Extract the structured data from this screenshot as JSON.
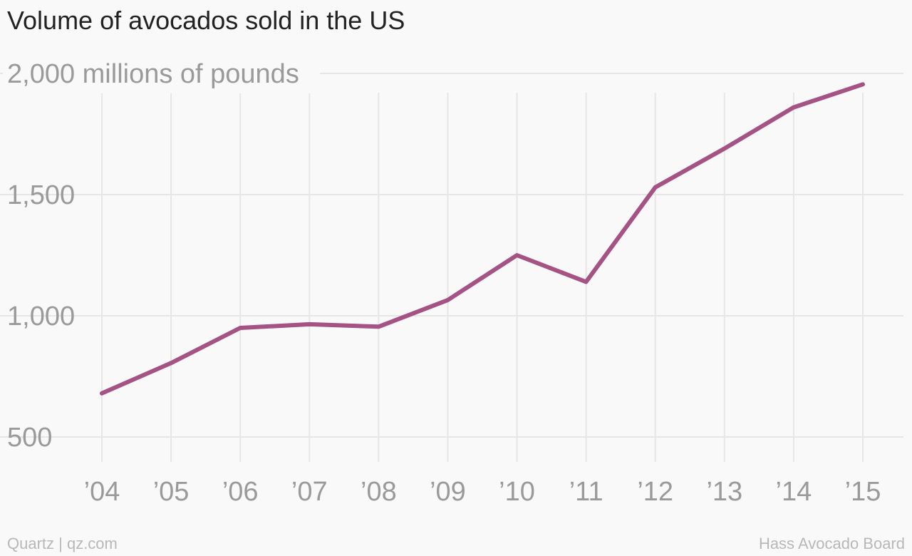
{
  "chart_data": {
    "type": "line",
    "title": "Volume of avocados sold in the US",
    "ylabel": "millions of pounds",
    "x": [
      "’04",
      "’05",
      "’06",
      "’07",
      "’08",
      "’09",
      "’10",
      "’11",
      "’12",
      "’13",
      "’14",
      "’15"
    ],
    "series": [
      {
        "values": [
          680,
          805,
          950,
          965,
          955,
          1065,
          1250,
          1140,
          1530,
          1690,
          1860,
          1955
        ]
      }
    ],
    "ylim": [
      500,
      2000
    ],
    "yticks": [
      {
        "value": 2000,
        "label": "2,000"
      },
      {
        "value": 1500,
        "label": "1,500"
      },
      {
        "value": 1000,
        "label": "1,000"
      },
      {
        "value": 500,
        "label": "500"
      }
    ],
    "grid": true,
    "line_color": "#a55385"
  },
  "footer": {
    "source_left": "Quartz | qz.com",
    "source_right": "Hass Avocado Board"
  }
}
